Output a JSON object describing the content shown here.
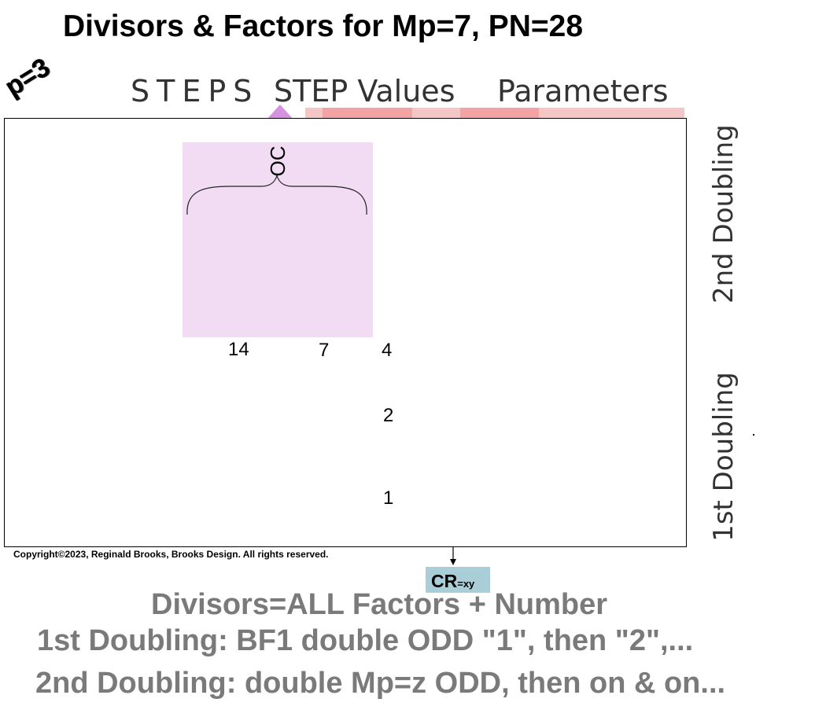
{
  "title": "Divisors & Factors for Mp=7, PN=28",
  "prime_label": "p=3",
  "headers": {
    "steps": "STEPS",
    "step_values": "STEP Values",
    "parameters": "Parameters"
  },
  "oc_label": "OC",
  "numbers": {
    "n14": "14",
    "n7": "7",
    "n4": "4",
    "n2": "2",
    "n1": "1"
  },
  "side_labels": {
    "second_doubling": "2nd Doubling",
    "first_doubling": "1st Doubling"
  },
  "copyright": "Copyright©2023, Reginald Brooks, Brooks Design. All rights reserved.",
  "cr": {
    "main": "CR",
    "sub": "=xy"
  },
  "bottom_lines": [
    "Divisors=ALL Factors + Number",
    "1st Doubling: BF1 double ODD \"1\", then \"2\",...",
    "2nd Doubling: double Mp=z ODD, then on & on..."
  ],
  "colors": {
    "oc_box": "#f1dcf4",
    "pink_bar": "#f5c6c6",
    "pink_bar_dark": "#f3a3a3",
    "triangle": "#d592e1",
    "cr_box": "#a9ced8",
    "bottom_text": "#7a7a7a"
  }
}
